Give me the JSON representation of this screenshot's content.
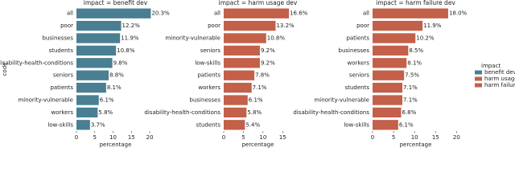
{
  "chart_data": [
    {
      "type": "hbar",
      "title": "impact = benefit dev",
      "ylabel": "code",
      "xlabel": "percentage",
      "legend_title": "impact",
      "categories": [
        "all",
        "poor",
        "businesses",
        "students",
        "disability-health-conditions",
        "seniors",
        "patients",
        "minority-vulnerable",
        "workers",
        "low-skills"
      ],
      "series": [
        {
          "name": "benefit dev",
          "color": "#4a7f93",
          "values": [
            20.3,
            12.2,
            11.9,
            10.8,
            9.8,
            8.8,
            8.1,
            6.1,
            5.8,
            3.7
          ],
          "value_labels": [
            "20.3%",
            "12.2%",
            "11.9%",
            "10.8%",
            "9.8%",
            "8.8%",
            "8.1%",
            "6.1%",
            "5.8%",
            "3.7%"
          ]
        }
      ],
      "xlim": [
        0,
        21.3
      ],
      "xticks": [
        0,
        5,
        10,
        15,
        20
      ]
    },
    {
      "type": "hbar",
      "title": "impact = harm usage dev",
      "xlabel": "percentage",
      "categories": [
        "all",
        "poor",
        "minority-vulnerable",
        "seniors",
        "low-skills",
        "patients",
        "workers",
        "businesses",
        "disability-health-conditions",
        "students"
      ],
      "series": [
        {
          "name": "harm usage dev",
          "color": "#c3604a",
          "values": [
            16.6,
            13.2,
            10.8,
            9.2,
            9.2,
            7.8,
            7.1,
            6.1,
            5.8,
            5.4
          ],
          "value_labels": [
            "16.6%",
            "13.2%",
            "10.8%",
            "9.2%",
            "9.2%",
            "7.8%",
            "7.1%",
            "6.1%",
            "5.8%",
            "5.4%"
          ]
        }
      ],
      "xlim": [
        0,
        17.4
      ],
      "xticks": [
        0,
        5,
        10,
        15
      ]
    },
    {
      "type": "hbar",
      "title": "impact = harm failure dev",
      "xlabel": "percentage",
      "categories": [
        "all",
        "poor",
        "patients",
        "businesses",
        "workers",
        "seniors",
        "students",
        "minority-vulnerable",
        "disability-health-conditions",
        "low-skills"
      ],
      "series": [
        {
          "name": "harm failure dev",
          "color": "#c3604a",
          "values": [
            18.0,
            11.9,
            10.2,
            8.5,
            8.1,
            7.5,
            7.1,
            7.1,
            6.8,
            6.1
          ],
          "value_labels": [
            "18.0%",
            "11.9%",
            "10.2%",
            "8.5%",
            "8.1%",
            "7.5%",
            "7.1%",
            "7.1%",
            "6.8%",
            "6.1%"
          ]
        }
      ],
      "xlim": [
        0,
        20.5
      ],
      "xticks": [
        0,
        5,
        10,
        15,
        20
      ]
    }
  ]
}
